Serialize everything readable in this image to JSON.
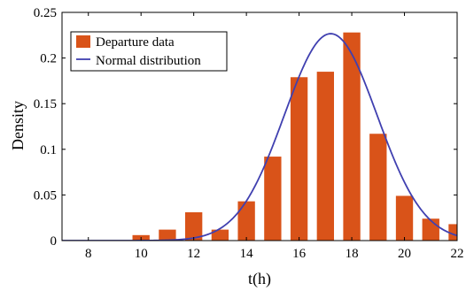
{
  "chart_data": {
    "type": "bar",
    "xlabel": "t(h)",
    "ylabel": "Density",
    "xlim": [
      7,
      22
    ],
    "ylim": [
      0,
      0.25
    ],
    "xticks": [
      8,
      10,
      12,
      14,
      16,
      18,
      20,
      22
    ],
    "yticks": [
      0,
      0.05,
      0.1,
      0.15,
      0.2,
      0.25
    ],
    "xtick_labels": [
      "8",
      "10",
      "12",
      "14",
      "16",
      "18",
      "20",
      "22"
    ],
    "ytick_labels": [
      "0",
      "0.05",
      "0.1",
      "0.15",
      "0.2",
      "0.25"
    ],
    "bar_width": 0.65,
    "grid": false,
    "legend_position": "top-left",
    "series": [
      {
        "name": "Departure data",
        "kind": "bar",
        "color": "#D95319",
        "x": [
          10,
          11,
          12,
          13,
          14,
          15,
          16,
          17,
          18,
          19,
          20,
          21,
          22
        ],
        "values": [
          0.006,
          0.012,
          0.031,
          0.012,
          0.043,
          0.092,
          0.179,
          0.185,
          0.228,
          0.117,
          0.049,
          0.024,
          0.018
        ]
      },
      {
        "name": "Normal distribution",
        "kind": "line",
        "color": "#4040B0",
        "mean": 17.2,
        "std": 1.76
      }
    ]
  }
}
